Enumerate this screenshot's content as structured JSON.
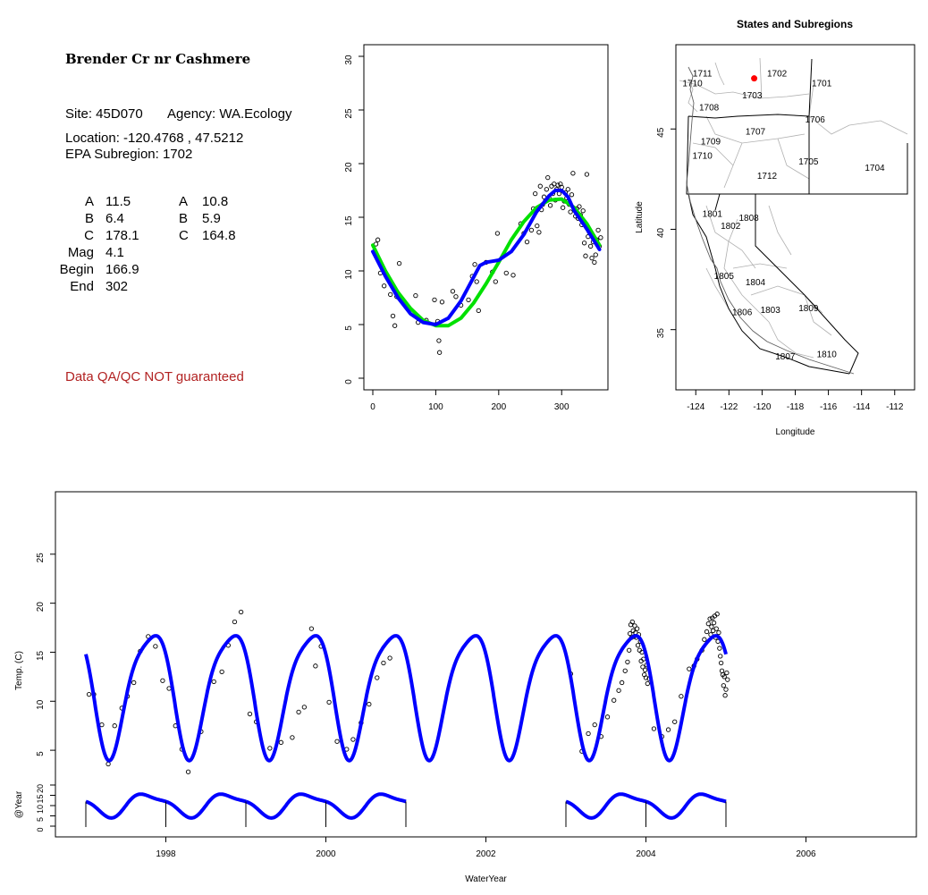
{
  "site": {
    "title": "Brender Cr nr Cashmere",
    "site_line": "Site: 45D070",
    "agency_line": "Agency: WA.Ecology",
    "location_line": "Location: -120.4768 , 47.5212",
    "subregion_line": "EPA Subregion: 1702",
    "qa_note": "Data QA/QC NOT guaranteed"
  },
  "params": {
    "col1": [
      {
        "label": "A",
        "value": "11.5"
      },
      {
        "label": "B",
        "value": "6.4"
      },
      {
        "label": "C",
        "value": "178.1"
      },
      {
        "label": "Mag",
        "value": "4.1"
      },
      {
        "label": "Begin",
        "value": "166.9"
      },
      {
        "label": "End",
        "value": "302"
      }
    ],
    "col2": [
      {
        "label": "A",
        "value": "10.8"
      },
      {
        "label": "B",
        "value": "5.9"
      },
      {
        "label": "C",
        "value": "164.8"
      }
    ]
  },
  "colors": {
    "blue": "#0000ff",
    "green": "#00e000",
    "point": "#000000",
    "qa": "#b22222",
    "site_marker": "#ff0000",
    "boundary": "#000000",
    "subregion": "#b0b0b0"
  },
  "chart_data": [
    {
      "type": "scatter",
      "title": "",
      "xlabel": "",
      "ylabel": "",
      "xlim": [
        0,
        365
      ],
      "ylim": [
        0,
        31
      ],
      "xticks": [
        "0",
        "100",
        "200",
        "300"
      ],
      "yticks": [
        "0",
        "5",
        "10",
        "15",
        "20",
        "25",
        "30"
      ],
      "grid": false,
      "points": [
        [
          5,
          12.5
        ],
        [
          8,
          12.9
        ],
        [
          12,
          9.8
        ],
        [
          18,
          8.6
        ],
        [
          28,
          7.8
        ],
        [
          32,
          5.8
        ],
        [
          35,
          4.9
        ],
        [
          38,
          7.6
        ],
        [
          42,
          10.7
        ],
        [
          68,
          7.7
        ],
        [
          72,
          5.2
        ],
        [
          85,
          5.4
        ],
        [
          98,
          7.3
        ],
        [
          100,
          5.0
        ],
        [
          103,
          5.3
        ],
        [
          105,
          3.5
        ],
        [
          106,
          2.4
        ],
        [
          110,
          7.1
        ],
        [
          127,
          8.1
        ],
        [
          132,
          7.6
        ],
        [
          140,
          6.8
        ],
        [
          152,
          7.3
        ],
        [
          158,
          9.5
        ],
        [
          162,
          10.6
        ],
        [
          165,
          9.0
        ],
        [
          168,
          6.3
        ],
        [
          180,
          10.8
        ],
        [
          190,
          9.9
        ],
        [
          195,
          9.0
        ],
        [
          198,
          13.5
        ],
        [
          212,
          9.8
        ],
        [
          223,
          9.6
        ],
        [
          235,
          14.4
        ],
        [
          240,
          13.5
        ],
        [
          245,
          12.7
        ],
        [
          252,
          13.8
        ],
        [
          255,
          15.8
        ],
        [
          258,
          17.2
        ],
        [
          261,
          14.2
        ],
        [
          264,
          13.6
        ],
        [
          266,
          17.9
        ],
        [
          268,
          15.7
        ],
        [
          270,
          16.2
        ],
        [
          272,
          16.9
        ],
        [
          274,
          16.5
        ],
        [
          276,
          17.6
        ],
        [
          278,
          18.7
        ],
        [
          280,
          16.8
        ],
        [
          282,
          16.1
        ],
        [
          284,
          17.9
        ],
        [
          286,
          17.2
        ],
        [
          288,
          18.1
        ],
        [
          290,
          16.6
        ],
        [
          292,
          17.6
        ],
        [
          294,
          18.0
        ],
        [
          296,
          17.2
        ],
        [
          298,
          18.1
        ],
        [
          300,
          17.8
        ],
        [
          302,
          15.9
        ],
        [
          304,
          16.5
        ],
        [
          306,
          17.3
        ],
        [
          308,
          16.8
        ],
        [
          310,
          17.6
        ],
        [
          312,
          16.2
        ],
        [
          314,
          15.5
        ],
        [
          316,
          17.1
        ],
        [
          318,
          19.1
        ],
        [
          320,
          15.8
        ],
        [
          322,
          15.1
        ],
        [
          324,
          15.8
        ],
        [
          326,
          14.9
        ],
        [
          328,
          16.0
        ],
        [
          330,
          15.2
        ],
        [
          332,
          14.3
        ],
        [
          334,
          15.6
        ],
        [
          336,
          12.6
        ],
        [
          338,
          11.4
        ],
        [
          340,
          19.0
        ],
        [
          342,
          13.2
        ],
        [
          344,
          13.6
        ],
        [
          346,
          12.3
        ],
        [
          348,
          11.2
        ],
        [
          350,
          12.7
        ],
        [
          352,
          10.8
        ],
        [
          354,
          11.5
        ],
        [
          356,
          12.9
        ],
        [
          358,
          13.8
        ],
        [
          360,
          12.3
        ],
        [
          362,
          13.1
        ]
      ],
      "series": [
        {
          "name": "",
          "color": "green",
          "x": [
            0,
            20,
            40,
            60,
            80,
            100,
            120,
            140,
            160,
            180,
            200,
            220,
            240,
            260,
            280,
            300,
            320,
            340,
            360
          ],
          "y": [
            12.4,
            10.0,
            8.0,
            6.5,
            5.4,
            4.9,
            4.9,
            5.6,
            7.0,
            8.8,
            10.8,
            12.9,
            14.6,
            15.9,
            16.6,
            16.7,
            15.9,
            14.4,
            12.4
          ]
        },
        {
          "name": "",
          "color": "blue",
          "x": [
            0,
            20,
            40,
            60,
            80,
            100,
            120,
            140,
            160,
            170,
            180,
            190,
            200,
            220,
            240,
            260,
            280,
            290,
            300,
            310,
            320,
            340,
            360
          ],
          "y": [
            11.8,
            9.5,
            7.5,
            6.0,
            5.2,
            5.0,
            5.6,
            7.2,
            9.4,
            10.5,
            10.8,
            10.9,
            11.0,
            11.8,
            13.4,
            15.5,
            17.0,
            17.5,
            17.5,
            16.9,
            15.6,
            13.9,
            12.0
          ]
        }
      ]
    },
    {
      "type": "map",
      "title": "States and Subregions",
      "xlabel": "Longitude",
      "ylabel": "Latitude",
      "xlim": [
        -125.2,
        -110.8
      ],
      "ylim": [
        32.0,
        49.2
      ],
      "xticks": [
        "-124",
        "-122",
        "-120",
        "-118",
        "-116",
        "-114",
        "-112"
      ],
      "yticks": [
        "35",
        "40",
        "45"
      ],
      "site": {
        "lon": -120.4768,
        "lat": 47.5212
      },
      "regions": [
        {
          "label": "1711",
          "lon": -123.6,
          "lat": 47.8
        },
        {
          "label": "1702",
          "lon": -119.1,
          "lat": 47.8
        },
        {
          "label": "1710",
          "lon": -124.2,
          "lat": 47.3
        },
        {
          "label": "1701",
          "lon": -116.4,
          "lat": 47.3
        },
        {
          "label": "1703",
          "lon": -120.6,
          "lat": 46.7
        },
        {
          "label": "1708",
          "lon": -123.2,
          "lat": 46.1
        },
        {
          "label": "1706",
          "lon": -116.8,
          "lat": 45.5
        },
        {
          "label": "1707",
          "lon": -120.4,
          "lat": 44.9
        },
        {
          "label": "1709",
          "lon": -123.1,
          "lat": 44.4
        },
        {
          "label": "1710",
          "lon": -123.6,
          "lat": 43.7
        },
        {
          "label": "1705",
          "lon": -117.2,
          "lat": 43.4
        },
        {
          "label": "1704",
          "lon": -113.2,
          "lat": 43.1
        },
        {
          "label": "1712",
          "lon": -119.7,
          "lat": 42.7
        },
        {
          "label": "1801",
          "lon": -123.0,
          "lat": 40.8
        },
        {
          "label": "1808",
          "lon": -120.8,
          "lat": 40.6
        },
        {
          "label": "1802",
          "lon": -121.9,
          "lat": 40.2
        },
        {
          "label": "1805",
          "lon": -122.3,
          "lat": 37.7
        },
        {
          "label": "1804",
          "lon": -120.4,
          "lat": 37.4
        },
        {
          "label": "1809",
          "lon": -117.2,
          "lat": 36.1
        },
        {
          "label": "1806",
          "lon": -121.2,
          "lat": 35.9
        },
        {
          "label": "1803",
          "lon": -119.5,
          "lat": 36.0
        },
        {
          "label": "1810",
          "lon": -116.1,
          "lat": 33.8
        },
        {
          "label": "1807",
          "lon": -118.6,
          "lat": 33.7
        }
      ]
    },
    {
      "type": "line",
      "title": "",
      "xlabel": "WaterYear",
      "ylabel": "Temp. (C)",
      "xlim": [
        1996.62,
        2007.38
      ],
      "ylim": [
        2,
        30
      ],
      "xticks": [
        "1998",
        "2000",
        "2002",
        "2004",
        "2006"
      ],
      "yticks": [
        "5",
        "10",
        "15",
        "20",
        "25"
      ],
      "seasonal_model": {
        "mean": 11.3,
        "amplitude": 6.2,
        "peak_frac": 0.81,
        "harmonic2": 1.25,
        "phase2": 0.02,
        "start": 1997.0,
        "end": 2005.0
      },
      "points": [
        [
          1997.04,
          10.7
        ],
        [
          1997.1,
          10.7
        ],
        [
          1997.2,
          7.6
        ],
        [
          1997.28,
          3.6
        ],
        [
          1997.36,
          7.5
        ],
        [
          1997.45,
          9.3
        ],
        [
          1997.52,
          10.5
        ],
        [
          1997.6,
          11.9
        ],
        [
          1997.68,
          15.1
        ],
        [
          1997.78,
          16.6
        ],
        [
          1997.87,
          15.6
        ],
        [
          1997.96,
          12.1
        ],
        [
          1998.04,
          11.3
        ],
        [
          1998.12,
          7.5
        ],
        [
          1998.2,
          5.1
        ],
        [
          1998.28,
          2.8
        ],
        [
          1998.44,
          6.9
        ],
        [
          1998.6,
          12.0
        ],
        [
          1998.7,
          13.0
        ],
        [
          1998.78,
          15.7
        ],
        [
          1998.86,
          18.1
        ],
        [
          1998.94,
          19.1
        ],
        [
          1999.05,
          8.7
        ],
        [
          1999.13,
          7.9
        ],
        [
          1999.3,
          5.2
        ],
        [
          1999.44,
          5.8
        ],
        [
          1999.58,
          6.3
        ],
        [
          1999.66,
          8.9
        ],
        [
          1999.73,
          9.4
        ],
        [
          1999.82,
          17.4
        ],
        [
          1999.87,
          13.6
        ],
        [
          1999.94,
          15.6
        ],
        [
          2000.04,
          9.9
        ],
        [
          2000.14,
          5.9
        ],
        [
          2000.26,
          5.1
        ],
        [
          2000.34,
          6.1
        ],
        [
          2000.44,
          7.8
        ],
        [
          2000.54,
          9.7
        ],
        [
          2000.64,
          12.4
        ],
        [
          2000.72,
          13.9
        ],
        [
          2000.8,
          14.4
        ],
        [
          2003.06,
          12.8
        ],
        [
          2003.2,
          4.9
        ],
        [
          2003.28,
          6.7
        ],
        [
          2003.36,
          7.6
        ],
        [
          2003.44,
          6.4
        ],
        [
          2003.52,
          8.4
        ],
        [
          2003.6,
          10.1
        ],
        [
          2003.66,
          11.1
        ],
        [
          2003.7,
          11.9
        ],
        [
          2003.74,
          13.1
        ],
        [
          2003.77,
          14.0
        ],
        [
          2003.79,
          15.2
        ],
        [
          2003.8,
          16.9
        ],
        [
          2003.81,
          17.8
        ],
        [
          2003.82,
          16.5
        ],
        [
          2003.83,
          18.1
        ],
        [
          2003.84,
          17.2
        ],
        [
          2003.85,
          16.6
        ],
        [
          2003.86,
          17.7
        ],
        [
          2003.87,
          17.0
        ],
        [
          2003.88,
          16.5
        ],
        [
          2003.89,
          17.4
        ],
        [
          2003.9,
          15.7
        ],
        [
          2003.91,
          16.8
        ],
        [
          2003.92,
          15.2
        ],
        [
          2003.93,
          16.1
        ],
        [
          2003.94,
          14.1
        ],
        [
          2003.95,
          15.0
        ],
        [
          2003.96,
          13.5
        ],
        [
          2003.97,
          14.3
        ],
        [
          2003.98,
          12.7
        ],
        [
          2003.99,
          13.2
        ],
        [
          2004.0,
          12.4
        ],
        [
          2004.01,
          13.7
        ],
        [
          2004.02,
          11.8
        ],
        [
          2004.04,
          12.3
        ],
        [
          2004.1,
          7.2
        ],
        [
          2004.2,
          6.4
        ],
        [
          2004.28,
          7.1
        ],
        [
          2004.36,
          7.9
        ],
        [
          2004.44,
          10.5
        ],
        [
          2004.54,
          13.3
        ],
        [
          2004.6,
          13.6
        ],
        [
          2004.64,
          14.3
        ],
        [
          2004.7,
          15.2
        ],
        [
          2004.73,
          16.3
        ],
        [
          2004.76,
          17.1
        ],
        [
          2004.78,
          17.9
        ],
        [
          2004.8,
          18.4
        ],
        [
          2004.81,
          16.8
        ],
        [
          2004.82,
          17.6
        ],
        [
          2004.83,
          18.5
        ],
        [
          2004.84,
          17.2
        ],
        [
          2004.85,
          18.0
        ],
        [
          2004.86,
          18.7
        ],
        [
          2004.87,
          16.5
        ],
        [
          2004.88,
          17.4
        ],
        [
          2004.89,
          18.9
        ],
        [
          2004.9,
          16.1
        ],
        [
          2004.91,
          17.0
        ],
        [
          2004.92,
          15.4
        ],
        [
          2004.93,
          14.6
        ],
        [
          2004.94,
          13.9
        ],
        [
          2004.95,
          13.1
        ],
        [
          2004.96,
          12.7
        ],
        [
          2004.97,
          11.6
        ],
        [
          2004.98,
          12.5
        ],
        [
          2004.99,
          10.6
        ],
        [
          2005.0,
          11.2
        ],
        [
          2005.01,
          12.9
        ],
        [
          2005.02,
          12.2
        ]
      ]
    },
    {
      "type": "line",
      "title": "",
      "xlabel": "",
      "ylabel": "@Year",
      "xlim": [
        1996.62,
        2007.38
      ],
      "ylim": [
        -3,
        24
      ],
      "yticks": [
        "0",
        "5",
        "10",
        "15",
        "20"
      ],
      "segments": [
        [
          1997.0,
          1999.0
        ],
        [
          1999.0,
          2001.0
        ],
        [
          2003.0,
          2005.0
        ]
      ],
      "year_marks": [
        "1997",
        "1998",
        "1999",
        "2000",
        "2001",
        "2003",
        "2004",
        "2005"
      ]
    }
  ]
}
